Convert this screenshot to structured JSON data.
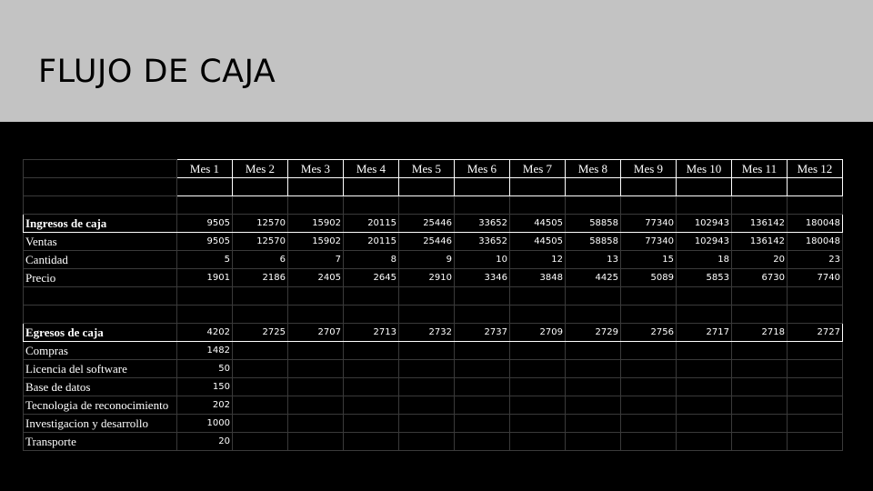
{
  "slide": {
    "title": "FLUJO DE CAJA"
  },
  "table": {
    "months": [
      "Mes 1",
      "Mes 2",
      "Mes 3",
      "Mes 4",
      "Mes 5",
      "Mes 6",
      "Mes 7",
      "Mes 8",
      "Mes 9",
      "Mes 10",
      "Mes 11",
      "Mes 12"
    ],
    "ingresos": {
      "label": "Ingresos de caja",
      "total": [
        "9505",
        "12570",
        "15902",
        "20115",
        "25446",
        "33652",
        "44505",
        "58858",
        "77340",
        "102943",
        "136142",
        "180048"
      ],
      "rows": [
        {
          "label": "Ventas",
          "values": [
            "9505",
            "12570",
            "15902",
            "20115",
            "25446",
            "33652",
            "44505",
            "58858",
            "77340",
            "102943",
            "136142",
            "180048"
          ]
        },
        {
          "label": "Cantidad",
          "values": [
            "5",
            "6",
            "7",
            "8",
            "9",
            "10",
            "12",
            "13",
            "15",
            "18",
            "20",
            "23"
          ]
        },
        {
          "label": "Precio",
          "values": [
            "1901",
            "2186",
            "2405",
            "2645",
            "2910",
            "3346",
            "3848",
            "4425",
            "5089",
            "5853",
            "6730",
            "7740"
          ]
        }
      ]
    },
    "egresos": {
      "label": "Egresos de caja",
      "total": [
        "4202",
        "2725",
        "2707",
        "2713",
        "2732",
        "2737",
        "2709",
        "2729",
        "2756",
        "2717",
        "2718",
        "2727"
      ],
      "rows": [
        {
          "label": "Compras",
          "values": [
            "1482",
            "",
            "",
            "",
            "",
            "",
            "",
            "",
            "",
            "",
            "",
            ""
          ]
        },
        {
          "label": "Licencia del software",
          "values": [
            "50",
            "",
            "",
            "",
            "",
            "",
            "",
            "",
            "",
            "",
            "",
            ""
          ]
        },
        {
          "label": "Base de datos",
          "values": [
            "150",
            "",
            "",
            "",
            "",
            "",
            "",
            "",
            "",
            "",
            "",
            ""
          ]
        },
        {
          "label": "Tecnologia de reconocimiento",
          "values": [
            "202",
            "",
            "",
            "",
            "",
            "",
            "",
            "",
            "",
            "",
            "",
            ""
          ]
        },
        {
          "label": "Investigacion y desarrollo",
          "values": [
            "1000",
            "",
            "",
            "",
            "",
            "",
            "",
            "",
            "",
            "",
            "",
            ""
          ]
        },
        {
          "label": "Transporte",
          "values": [
            "20",
            "",
            "",
            "",
            "",
            "",
            "",
            "",
            "",
            "",
            "",
            ""
          ]
        }
      ]
    }
  }
}
